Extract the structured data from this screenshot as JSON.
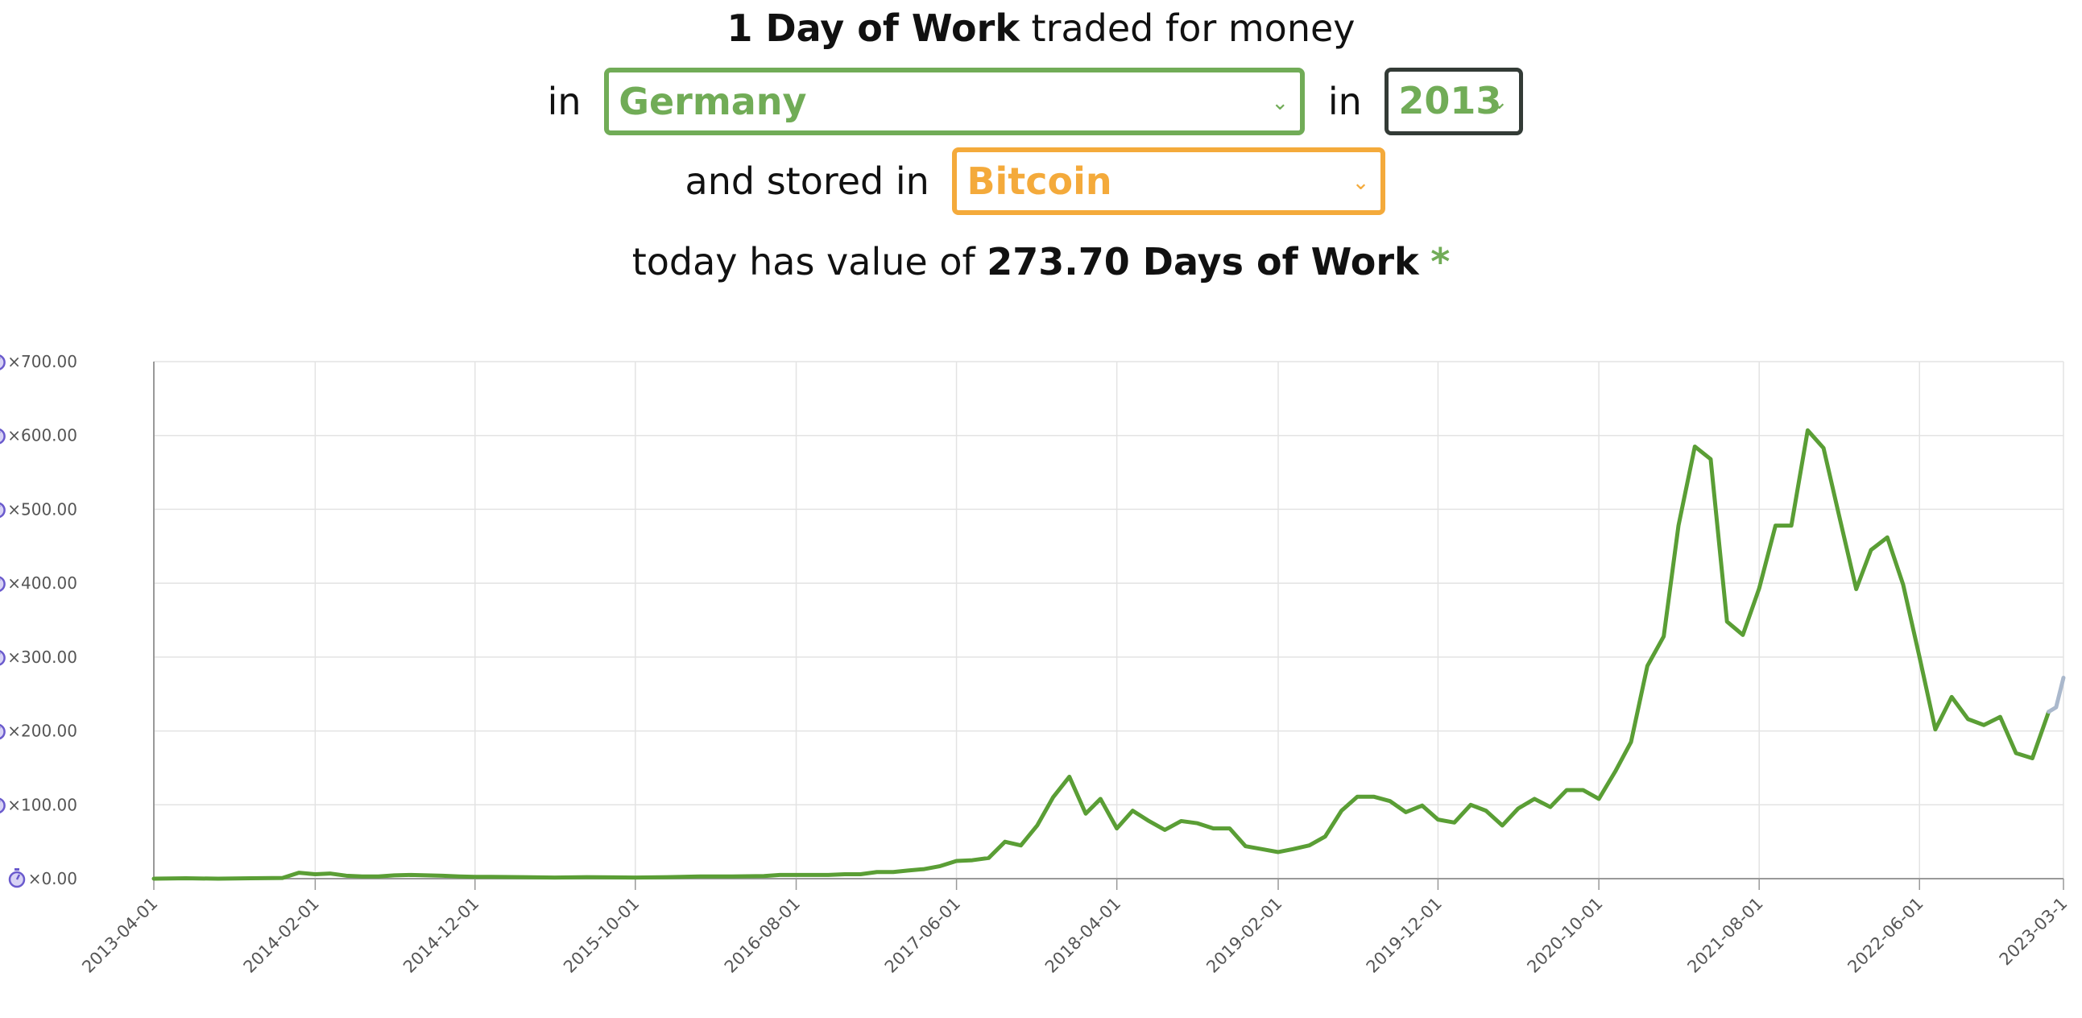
{
  "header": {
    "line1": {
      "strong": "1 Day of Work",
      "rest": "traded for money"
    },
    "line2": {
      "in_label_1": "in",
      "country": "Germany",
      "in_label_2": "in",
      "year": "2013"
    },
    "line3": {
      "stored_label": "and stored in",
      "store": "Bitcoin"
    },
    "line4": {
      "prefix": "today has value of",
      "value": "273.70 Days of Work",
      "asterisk": "*"
    }
  },
  "icons": {
    "select_caret": "chevron-down-icon",
    "y_tick": "stopwatch-icon"
  },
  "colors": {
    "country_select": "#71ac57",
    "year_select_border": "#333b36",
    "store_select": "#f4aa3b",
    "series_main": "#5a9e35",
    "series_projection": "#aab8cc",
    "grid": "#e3e3e3",
    "axis": "#999999",
    "icon": "#6a5acd"
  },
  "chart_data": {
    "type": "line",
    "title": "",
    "xlabel": "",
    "ylabel": "",
    "x_start": "2013-04-01",
    "x_end": "2023-03-01",
    "xticks": [
      "2013-04-01",
      "2014-02-01",
      "2014-12-01",
      "2015-10-01",
      "2016-08-01",
      "2017-06-01",
      "2018-04-01",
      "2019-02-01",
      "2019-12-01",
      "2020-10-01",
      "2021-08-01",
      "2022-06-01",
      "2023-03-1"
    ],
    "ylim": [
      0,
      700
    ],
    "yticks": [
      0,
      100,
      200,
      300,
      400,
      500,
      600,
      700
    ],
    "ytick_labels": [
      "×0.00",
      "×100.00",
      "×200.00",
      "×300.00",
      "×400.00",
      "×500.00",
      "×600.00",
      "×700.00"
    ],
    "grid": true,
    "series": [
      {
        "points": [
          [
            "2013-04-01",
            0
          ],
          [
            "2013-06-01",
            0.5
          ],
          [
            "2013-08-01",
            0
          ],
          [
            "2013-10-01",
            0.5
          ],
          [
            "2013-12-01",
            1
          ],
          [
            "2014-01-01",
            8
          ],
          [
            "2014-02-01",
            6
          ],
          [
            "2014-03-01",
            7
          ],
          [
            "2014-04-01",
            4
          ],
          [
            "2014-05-01",
            3
          ],
          [
            "2014-06-01",
            3
          ],
          [
            "2014-07-01",
            4.5
          ],
          [
            "2014-08-01",
            5
          ],
          [
            "2014-09-01",
            4.5
          ],
          [
            "2014-10-01",
            4
          ],
          [
            "2014-11-01",
            3
          ],
          [
            "2014-12-01",
            2.5
          ],
          [
            "2015-01-01",
            2.5
          ],
          [
            "2015-03-01",
            2
          ],
          [
            "2015-05-01",
            1.5
          ],
          [
            "2015-07-01",
            2
          ],
          [
            "2015-10-01",
            1.5
          ],
          [
            "2015-12-01",
            2
          ],
          [
            "2016-02-01",
            3
          ],
          [
            "2016-04-01",
            3
          ],
          [
            "2016-06-01",
            3.5
          ],
          [
            "2016-07-01",
            5
          ],
          [
            "2016-08-01",
            5
          ],
          [
            "2016-10-01",
            5
          ],
          [
            "2016-11-01",
            6
          ],
          [
            "2016-12-01",
            6
          ],
          [
            "2017-01-01",
            9
          ],
          [
            "2017-02-01",
            9
          ],
          [
            "2017-03-01",
            11
          ],
          [
            "2017-04-01",
            13
          ],
          [
            "2017-05-01",
            17
          ],
          [
            "2017-06-01",
            24
          ],
          [
            "2017-07-01",
            25
          ],
          [
            "2017-08-01",
            28
          ],
          [
            "2017-09-01",
            50
          ],
          [
            "2017-10-01",
            45
          ],
          [
            "2017-11-01",
            72
          ],
          [
            "2017-12-01",
            110
          ],
          [
            "2018-01-01",
            138
          ],
          [
            "2018-02-01",
            88
          ],
          [
            "2018-03-01",
            108
          ],
          [
            "2018-04-01",
            68
          ],
          [
            "2018-05-01",
            92
          ],
          [
            "2018-06-01",
            78
          ],
          [
            "2018-07-01",
            66
          ],
          [
            "2018-08-01",
            78
          ],
          [
            "2018-09-01",
            75
          ],
          [
            "2018-10-01",
            68
          ],
          [
            "2018-11-01",
            68
          ],
          [
            "2018-12-01",
            44
          ],
          [
            "2019-01-01",
            40
          ],
          [
            "2019-02-01",
            36
          ],
          [
            "2019-03-01",
            40
          ],
          [
            "2019-04-01",
            45
          ],
          [
            "2019-05-01",
            57
          ],
          [
            "2019-06-01",
            92
          ],
          [
            "2019-07-01",
            111
          ],
          [
            "2019-08-01",
            111
          ],
          [
            "2019-09-01",
            105
          ],
          [
            "2019-10-01",
            90
          ],
          [
            "2019-11-01",
            99
          ],
          [
            "2019-12-01",
            80
          ],
          [
            "2020-01-01",
            76
          ],
          [
            "2020-02-01",
            100
          ],
          [
            "2020-03-01",
            92
          ],
          [
            "2020-04-01",
            72
          ],
          [
            "2020-05-01",
            95
          ],
          [
            "2020-06-01",
            108
          ],
          [
            "2020-07-01",
            97
          ],
          [
            "2020-08-01",
            120
          ],
          [
            "2020-09-01",
            120
          ],
          [
            "2020-10-01",
            108
          ],
          [
            "2020-11-01",
            145
          ],
          [
            "2020-12-01",
            185
          ],
          [
            "2021-01-01",
            288
          ],
          [
            "2021-02-01",
            328
          ],
          [
            "2021-03-01",
            478
          ],
          [
            "2021-04-01",
            585
          ],
          [
            "2021-05-01",
            568
          ],
          [
            "2021-06-01",
            348
          ],
          [
            "2021-07-01",
            330
          ],
          [
            "2021-08-01",
            393
          ],
          [
            "2021-09-01",
            478
          ],
          [
            "2021-10-01",
            478
          ],
          [
            "2021-11-01",
            607
          ],
          [
            "2021-12-01",
            583
          ],
          [
            "2022-01-01",
            487
          ],
          [
            "2022-02-01",
            392
          ],
          [
            "2022-03-01",
            445
          ],
          [
            "2022-04-01",
            462
          ],
          [
            "2022-05-01",
            398
          ],
          [
            "2022-06-01",
            300
          ],
          [
            "2022-07-01",
            202
          ],
          [
            "2022-08-01",
            246
          ],
          [
            "2022-09-01",
            216
          ],
          [
            "2022-10-01",
            208
          ],
          [
            "2022-11-01",
            219
          ],
          [
            "2022-12-01",
            170
          ],
          [
            "2023-01-01",
            163
          ],
          [
            "2023-02-01",
            226
          ]
        ]
      },
      {
        "points": [
          [
            "2023-02-01",
            226
          ],
          [
            "2023-02-15",
            232
          ],
          [
            "2023-03-01",
            272
          ]
        ]
      }
    ]
  }
}
